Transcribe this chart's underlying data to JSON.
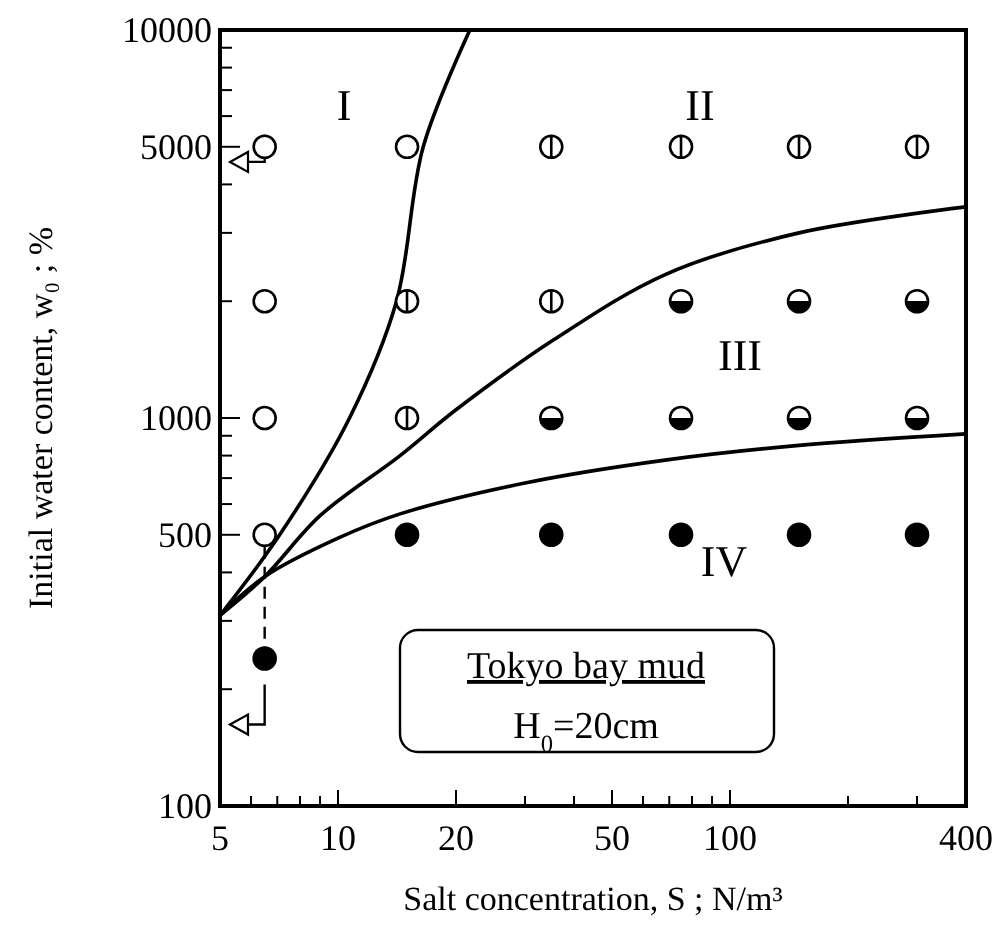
{
  "chart_data": {
    "type": "scatter",
    "xlabel": "Salt concentration, S ; N/m³",
    "ylabel": "Initial water content, w₀ ; %",
    "log": "xy",
    "grid": false,
    "xlim": [
      5,
      400
    ],
    "ylim": [
      100,
      10000
    ],
    "xticks": [
      5,
      {
        "value": 6,
        "label": null
      },
      {
        "value": 7,
        "label": null
      },
      {
        "value": 8,
        "label": null
      },
      {
        "value": 9,
        "label": null
      },
      10,
      20,
      {
        "value": 30,
        "label": null
      },
      {
        "value": 40,
        "label": null
      },
      50,
      {
        "value": 60,
        "label": null
      },
      {
        "value": 70,
        "label": null
      },
      {
        "value": 80,
        "label": null
      },
      {
        "value": 90,
        "label": null
      },
      100,
      {
        "value": 200,
        "label": null
      },
      {
        "value": 300,
        "label": null
      },
      400
    ],
    "yticks": [
      100,
      {
        "value": 200,
        "label": null
      },
      {
        "value": 300,
        "label": null
      },
      {
        "value": 400,
        "label": null
      },
      500,
      {
        "value": 600,
        "label": null
      },
      {
        "value": 700,
        "label": null
      },
      {
        "value": 800,
        "label": null
      },
      {
        "value": 900,
        "label": null
      },
      1000,
      {
        "value": 2000,
        "label": null
      },
      {
        "value": 3000,
        "label": null
      },
      {
        "value": 4000,
        "label": null
      },
      5000,
      {
        "value": 6000,
        "label": null
      },
      {
        "value": 7000,
        "label": null
      },
      {
        "value": 8000,
        "label": null
      },
      {
        "value": 9000,
        "label": null
      },
      10000
    ],
    "series": [
      {
        "type": "scatter",
        "marker": "circle",
        "color": "#000000",
        "x": [
          6.5,
          6.5,
          6.5,
          6.5,
          15
        ],
        "values": [
          5000,
          2000,
          1000,
          500,
          5000
        ]
      },
      {
        "type": "scatter",
        "color": "#000000",
        "x": [
          15,
          15,
          35,
          35,
          75,
          150,
          300
        ],
        "values": [
          2000,
          1000,
          5000,
          2000,
          5000,
          5000,
          5000
        ]
      },
      {
        "type": "scatter",
        "marker": "circle",
        "color": "#000000",
        "x": [
          35,
          75,
          75,
          150,
          150,
          300,
          300
        ],
        "values": [
          1000,
          2000,
          1000,
          2000,
          1000,
          2000,
          1000
        ]
      },
      {
        "type": "scatter",
        "marker": "circle",
        "color": "#000000",
        "x": [
          6.5,
          15,
          35,
          75,
          150,
          300
        ],
        "values": [
          240,
          500,
          500,
          500,
          500,
          500
        ]
      },
      {
        "type": "line",
        "marker": "none",
        "line_style": "solid",
        "color": "#000000",
        "x": [
          5,
          7.1,
          10.7,
          14.1,
          16.5,
          21.7
        ],
        "values": [
          310,
          500,
          1000,
          2000,
          5000,
          10000
        ]
      },
      {
        "type": "line",
        "marker": "none",
        "line_style": "solid",
        "color": "#000000",
        "x": [
          5,
          6.5,
          9,
          14.4,
          20,
          35.5,
          68.8,
          150,
          400
        ],
        "values": [
          310,
          390,
          560,
          800,
          1050,
          1590,
          2350,
          3000,
          3500
        ]
      },
      {
        "type": "line",
        "marker": "none",
        "line_style": "solid",
        "color": "#000000",
        "x": [
          5,
          6.5,
          10,
          14.4,
          30,
          69,
          150,
          400
        ],
        "values": [
          310,
          390,
          490,
          566,
          680,
          780,
          850,
          910
        ]
      }
    ],
    "annotations": [
      "I",
      "II",
      "III",
      "IV",
      "Tokyo bay mud",
      "H$_{0}$=20cm"
    ]
  }
}
